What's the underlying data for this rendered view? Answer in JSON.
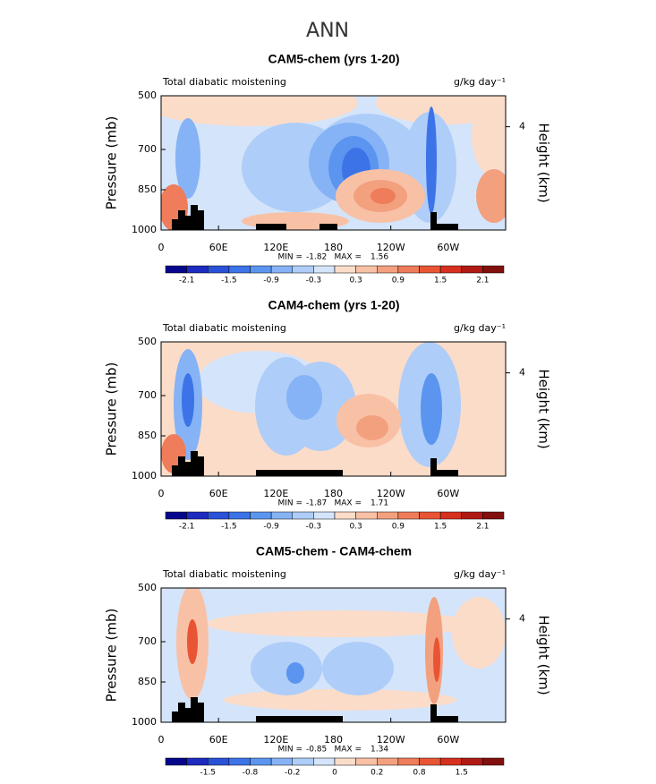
{
  "title": "ANN",
  "chart_data": [
    {
      "type": "contour",
      "title": "CAM5-chem (yrs 1-20)",
      "left_label": "Total diabatic moistening",
      "right_label": "g/kg day⁻¹",
      "ylabel": "Pressure (mb)",
      "y2label": "Height (km)",
      "xlim": [
        0,
        360
      ],
      "xticks": [
        0,
        {
          "value": 60,
          "label": "60E"
        },
        {
          "value": 120,
          "label": "120E"
        },
        180,
        {
          "value": 240,
          "label": "120W"
        },
        {
          "value": 300,
          "label": "60W"
        }
      ],
      "ylim": [
        1000,
        500
      ],
      "yticks": [
        500,
        700,
        850,
        1000
      ],
      "y2lim": [
        0,
        5.2
      ],
      "y2ticks": [
        4
      ],
      "min_label": "MIN =",
      "min": -1.82,
      "max_label": "MAX =",
      "max": 1.56,
      "colorbar": {
        "levels": [
          -2.1,
          -1.8,
          -1.5,
          -1.2,
          -0.9,
          -0.6,
          -0.3,
          0,
          0.3,
          0.6,
          0.9,
          1.2,
          1.5,
          1.8,
          2.1
        ],
        "colors": [
          "#06068c",
          "#1d2bbf",
          "#2a52d9",
          "#3c74e8",
          "#5b95f0",
          "#86b3f5",
          "#aecdf8",
          "#d4e4fa",
          "#fbdcc9",
          "#f8c1a6",
          "#f3a07f",
          "#ef7c5a",
          "#e95534",
          "#d7301f",
          "#b01a14",
          "#82100e"
        ],
        "ticks": [
          -2.1,
          -1.5,
          -0.9,
          -0.3,
          0.3,
          0.9,
          1.5,
          2.1
        ]
      }
    },
    {
      "type": "contour",
      "title": "CAM4-chem (yrs 1-20)",
      "left_label": "Total diabatic moistening",
      "right_label": "g/kg day⁻¹",
      "ylabel": "Pressure (mb)",
      "y2label": "Height (km)",
      "xlim": [
        0,
        360
      ],
      "xticks": [
        0,
        {
          "value": 60,
          "label": "60E"
        },
        {
          "value": 120,
          "label": "120E"
        },
        180,
        {
          "value": 240,
          "label": "120W"
        },
        {
          "value": 300,
          "label": "60W"
        }
      ],
      "ylim": [
        1000,
        500
      ],
      "yticks": [
        500,
        700,
        850,
        1000
      ],
      "y2lim": [
        0,
        5.2
      ],
      "y2ticks": [
        4
      ],
      "min_label": "MIN =",
      "min": -1.87,
      "max_label": "MAX =",
      "max": 1.71,
      "colorbar": {
        "levels": [
          -2.1,
          -1.8,
          -1.5,
          -1.2,
          -0.9,
          -0.6,
          -0.3,
          0,
          0.3,
          0.6,
          0.9,
          1.2,
          1.5,
          1.8,
          2.1
        ],
        "colors": [
          "#06068c",
          "#1d2bbf",
          "#2a52d9",
          "#3c74e8",
          "#5b95f0",
          "#86b3f5",
          "#aecdf8",
          "#d4e4fa",
          "#fbdcc9",
          "#f8c1a6",
          "#f3a07f",
          "#ef7c5a",
          "#e95534",
          "#d7301f",
          "#b01a14",
          "#82100e"
        ],
        "ticks": [
          -2.1,
          -1.5,
          -0.9,
          -0.3,
          0.3,
          0.9,
          1.5,
          2.1
        ]
      }
    },
    {
      "type": "contour",
      "title": "CAM5-chem - CAM4-chem",
      "left_label": "Total diabatic moistening",
      "right_label": "g/kg day⁻¹",
      "ylabel": "Pressure (mb)",
      "y2label": "Height (km)",
      "xlim": [
        0,
        360
      ],
      "xticks": [
        0,
        {
          "value": 60,
          "label": "60E"
        },
        {
          "value": 120,
          "label": "120E"
        },
        180,
        {
          "value": 240,
          "label": "120W"
        },
        {
          "value": 300,
          "label": "60W"
        }
      ],
      "ylim": [
        1000,
        500
      ],
      "yticks": [
        500,
        700,
        850,
        1000
      ],
      "y2lim": [
        0,
        5.2
      ],
      "y2ticks": [
        4
      ],
      "min_label": "MIN =",
      "min": -0.85,
      "max_label": "MAX =",
      "max": 1.34,
      "colorbar": {
        "levels": [
          -1.8,
          -1.5,
          -1.2,
          -0.8,
          -0.4,
          -0.2,
          -0.1,
          0,
          0.1,
          0.2,
          0.4,
          0.8,
          1.2,
          1.5,
          1.8
        ],
        "colors": [
          "#06068c",
          "#1d2bbf",
          "#2a52d9",
          "#3c74e8",
          "#5b95f0",
          "#86b3f5",
          "#aecdf8",
          "#d4e4fa",
          "#fbdcc9",
          "#f8c1a6",
          "#f3a07f",
          "#ef7c5a",
          "#e95534",
          "#d7301f",
          "#b01a14",
          "#82100e"
        ],
        "ticks": [
          -1.5,
          -0.8,
          -0.2,
          0,
          0.2,
          0.8,
          1.5
        ]
      }
    }
  ]
}
